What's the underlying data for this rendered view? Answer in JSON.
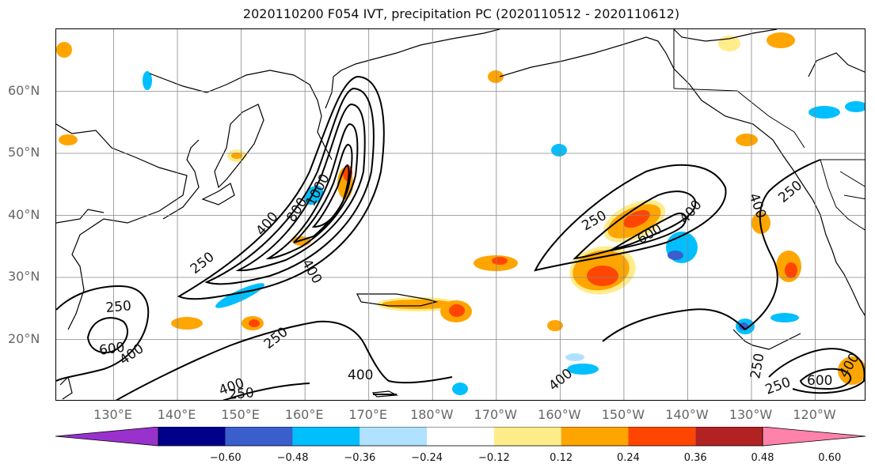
{
  "title": "2020110200 F054 IVT, precipitation PC (2020110512 - 2020110612)",
  "lat_labels": [
    {
      "text": "60°N",
      "lat": 60
    },
    {
      "text": "50°N",
      "lat": 50
    },
    {
      "text": "40°N",
      "lat": 40
    },
    {
      "text": "30°N",
      "lat": 30
    },
    {
      "text": "20°N",
      "lat": 20
    }
  ],
  "lon_labels": [
    {
      "text": "130°E",
      "lon": 130
    },
    {
      "text": "140°E",
      "lon": 140
    },
    {
      "text": "150°E",
      "lon": 150
    },
    {
      "text": "160°E",
      "lon": 160
    },
    {
      "text": "170°E",
      "lon": 170
    },
    {
      "text": "180°W",
      "lon": 180
    },
    {
      "text": "170°W",
      "lon": 190
    },
    {
      "text": "160°W",
      "lon": 200
    },
    {
      "text": "150°W",
      "lon": 210
    },
    {
      "text": "140°W",
      "lon": 220
    },
    {
      "text": "130°W",
      "lon": 230
    },
    {
      "text": "120°W",
      "lon": 240
    }
  ],
  "extent": {
    "lon_min": 121,
    "lon_max": 248,
    "lat_min": 10,
    "lat_max": 70
  },
  "contour_labels": [
    "250",
    "400",
    "600",
    "800",
    "1000"
  ],
  "colorbar": {
    "ticks": [
      "−0.60",
      "−0.48",
      "−0.36",
      "−0.24",
      "−0.12",
      "0.12",
      "0.24",
      "0.36",
      "0.48",
      "0.60"
    ],
    "colors": [
      "#9932cc",
      "#00008b",
      "#3a5fcd",
      "#00bfff",
      "#b0e2ff",
      "#ffffff",
      "#ffec8b",
      "#ffa500",
      "#ff4500",
      "#b22222",
      "#ff82ab"
    ]
  }
}
